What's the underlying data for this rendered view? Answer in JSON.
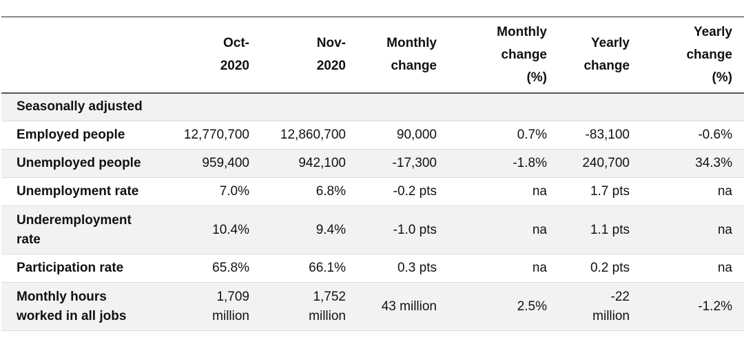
{
  "columns": [
    "",
    "Oct-\n2020",
    "Nov-\n2020",
    "Monthly\nchange",
    "Monthly\nchange\n(%)",
    "Yearly\nchange",
    "Yearly\nchange\n(%)"
  ],
  "section_label": "Seasonally adjusted",
  "rows": [
    {
      "label": "Employed people",
      "oct": "12,770,700",
      "nov": "12,860,700",
      "monthly_change": "90,000",
      "monthly_change_pct": "0.7%",
      "yearly_change": "-83,100",
      "yearly_change_pct": "-0.6%"
    },
    {
      "label": "Unemployed people",
      "oct": "959,400",
      "nov": "942,100",
      "monthly_change": "-17,300",
      "monthly_change_pct": "-1.8%",
      "yearly_change": "240,700",
      "yearly_change_pct": "34.3%"
    },
    {
      "label": "Unemployment rate",
      "oct": "7.0%",
      "nov": "6.8%",
      "monthly_change": "-0.2 pts",
      "monthly_change_pct": "na",
      "yearly_change": "1.7 pts",
      "yearly_change_pct": "na"
    },
    {
      "label": "Underemployment\nrate",
      "oct": "10.4%",
      "nov": "9.4%",
      "monthly_change": "-1.0 pts",
      "monthly_change_pct": "na",
      "yearly_change": "1.1 pts",
      "yearly_change_pct": "na"
    },
    {
      "label": "Participation rate",
      "oct": "65.8%",
      "nov": "66.1%",
      "monthly_change": "0.3 pts",
      "monthly_change_pct": "na",
      "yearly_change": "0.2 pts",
      "yearly_change_pct": "na"
    },
    {
      "label": "Monthly hours\nworked in all jobs",
      "oct": "1,709\nmillion",
      "nov": "1,752\nmillion",
      "monthly_change": "43 million",
      "monthly_change_pct": "2.5%",
      "yearly_change": "-22\nmillion",
      "yearly_change_pct": "-1.2%"
    }
  ]
}
